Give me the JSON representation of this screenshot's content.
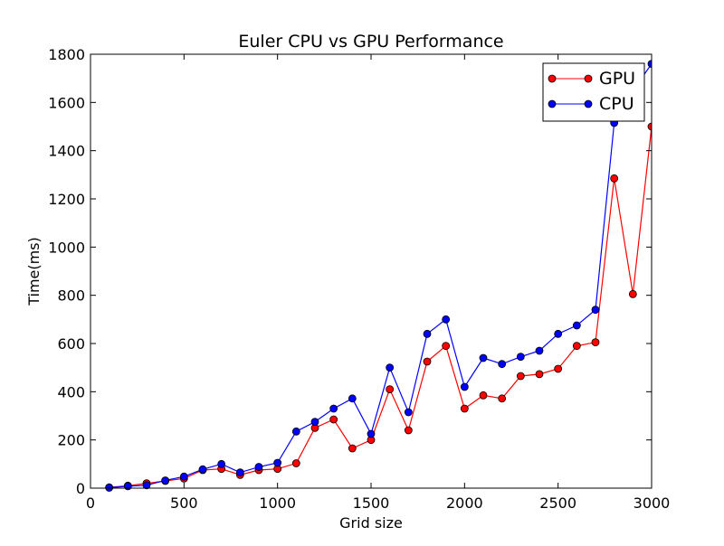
{
  "chart_data": {
    "type": "line",
    "title": "Euler CPU vs GPU Performance",
    "xlabel": "Grid size",
    "ylabel": "Time(ms)",
    "xlim": [
      0,
      3000
    ],
    "ylim": [
      0,
      1800
    ],
    "xticks": [
      0,
      500,
      1000,
      1500,
      2000,
      2500,
      3000
    ],
    "yticks": [
      0,
      200,
      400,
      600,
      800,
      1000,
      1200,
      1400,
      1600,
      1800
    ],
    "xtick_labels": [
      "0",
      "500",
      "1000",
      "1500",
      "2000",
      "2500",
      "3000"
    ],
    "ytick_labels": [
      "0",
      "200",
      "400",
      "600",
      "800",
      "1000",
      "1200",
      "1400",
      "1600",
      "1800"
    ],
    "grid": false,
    "legend_position": "top-right",
    "x": [
      100,
      200,
      300,
      400,
      500,
      600,
      700,
      800,
      900,
      1000,
      1100,
      1200,
      1300,
      1400,
      1500,
      1600,
      1700,
      1800,
      1900,
      2000,
      2100,
      2200,
      2300,
      2400,
      2500,
      2600,
      2700,
      2800,
      2900,
      3000
    ],
    "series": [
      {
        "name": "GPU",
        "color": "#ff0000",
        "values": [
          3,
          10,
          20,
          30,
          40,
          75,
          80,
          55,
          75,
          80,
          103,
          250,
          285,
          165,
          200,
          410,
          240,
          525,
          590,
          330,
          385,
          372,
          465,
          473,
          495,
          590,
          605,
          1285,
          805,
          1500
        ]
      },
      {
        "name": "CPU",
        "color": "#0000ff",
        "values": [
          2,
          8,
          12,
          32,
          48,
          78,
          100,
          65,
          88,
          105,
          235,
          275,
          330,
          372,
          225,
          500,
          315,
          640,
          700,
          420,
          540,
          515,
          545,
          570,
          640,
          675,
          740,
          1515,
          1650,
          1760
        ]
      }
    ]
  }
}
